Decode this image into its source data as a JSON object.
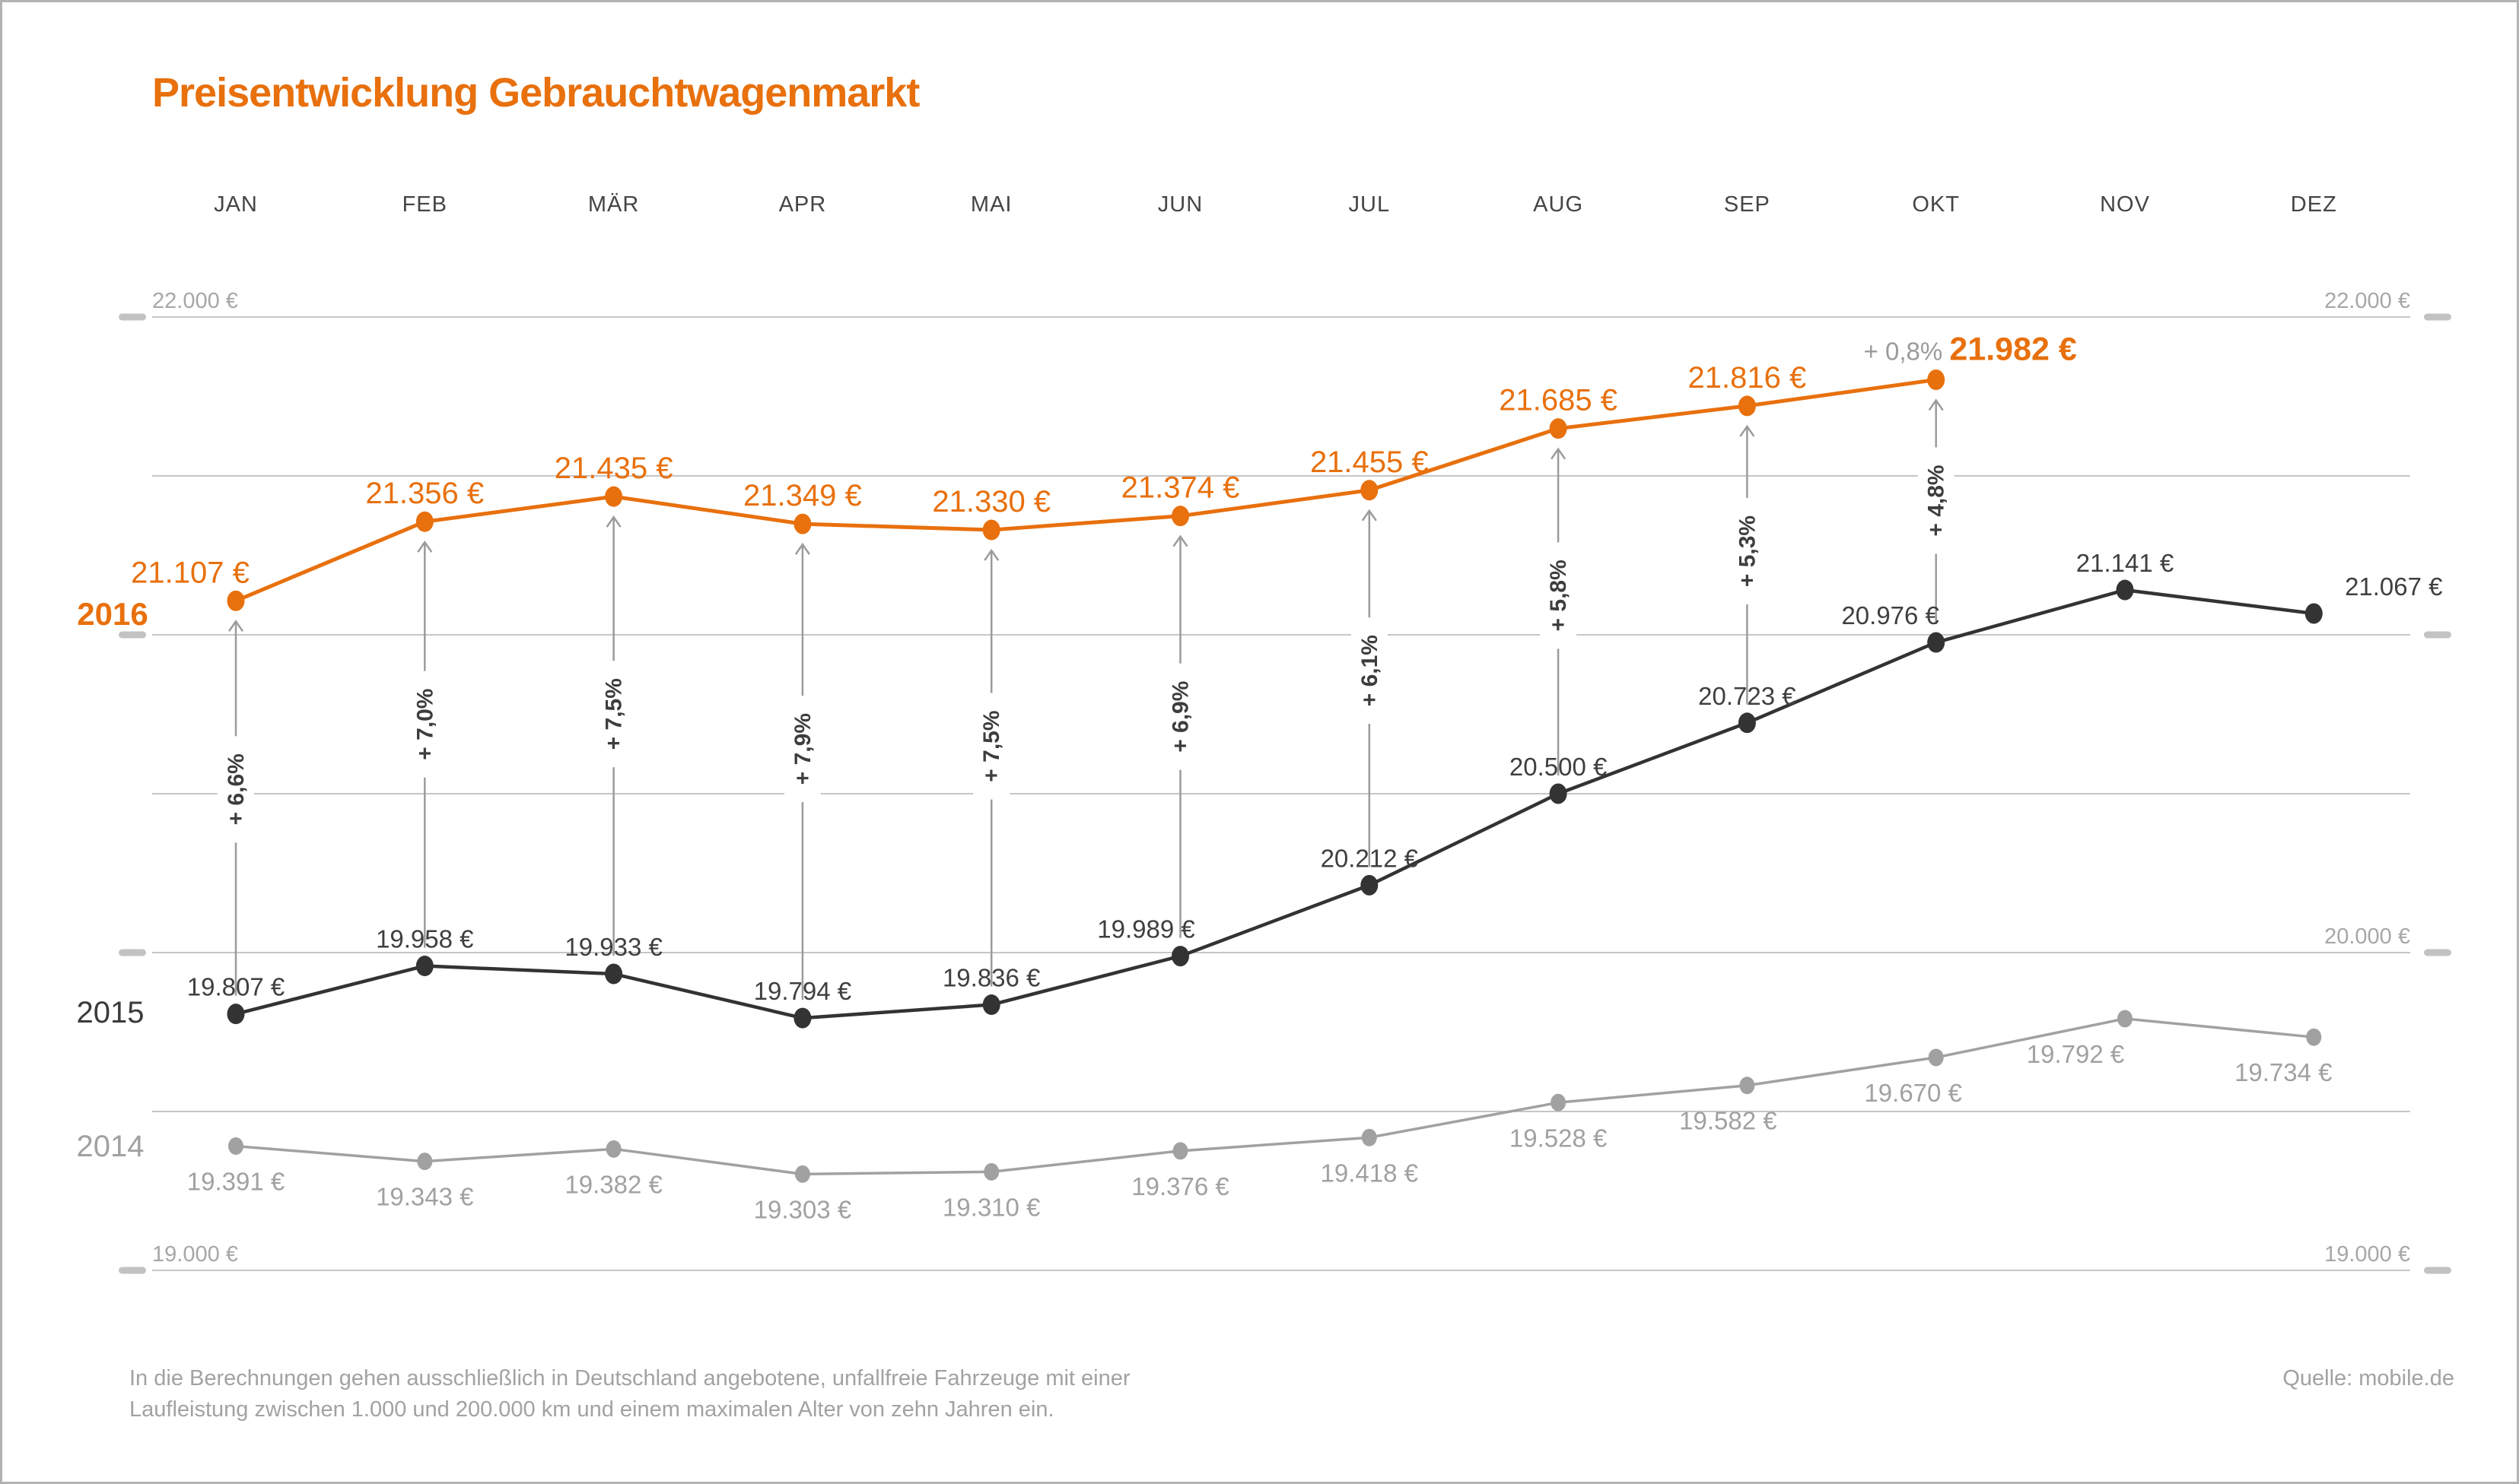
{
  "title": "Preisentwicklung Gebrauchtwagenmarkt",
  "source": "Quelle: mobile.de",
  "footer": {
    "line1": "In die Berechnungen gehen ausschließlich in Deutschland angebotene, unfallfreie Fahrzeuge mit einer",
    "line2": "Laufleistung zwischen 1.000 und 200.000 km und einem maximalen Alter von zehn Jahren ein."
  },
  "colors": {
    "accent": "#e8700d",
    "series_2015": "#333333",
    "series_2014": "#a1a1a1",
    "grid": "#c6c6c6",
    "axis_text": "#a7a7a7",
    "month_text": "#454545",
    "pct_text": "#3d3d3d",
    "arrow": "#9b9b9b"
  },
  "chart_data": {
    "type": "line",
    "title": "Preisentwicklung Gebrauchtwagenmarkt",
    "categories": [
      "JAN",
      "FEB",
      "MÄR",
      "APR",
      "MAI",
      "JUN",
      "JUL",
      "AUG",
      "SEP",
      "OKT",
      "NOV",
      "DEZ"
    ],
    "series": [
      {
        "name": "2016",
        "color": "#e8700d",
        "values": [
          21107,
          21356,
          21435,
          21349,
          21330,
          21374,
          21455,
          21685,
          21816,
          21982,
          null,
          null
        ]
      },
      {
        "name": "2015",
        "color": "#333333",
        "values": [
          19807,
          19958,
          19933,
          19794,
          19836,
          19989,
          20212,
          20500,
          20723,
          20976,
          21141,
          21067
        ]
      },
      {
        "name": "2014",
        "color": "#a1a1a1",
        "values": [
          19391,
          19343,
          19382,
          19303,
          19310,
          19376,
          19418,
          19528,
          19582,
          19670,
          19792,
          19734
        ]
      }
    ],
    "pct_change_2015_to_2016": [
      "+ 6,6%",
      "+ 7,0%",
      "+ 7,5%",
      "+ 7,9%",
      "+ 7,5%",
      "+ 6,9%",
      "+ 6,1%",
      "+ 5,8%",
      "+ 5,3%",
      "+ 4,8%"
    ],
    "okt_month_over_month_change": "+ 0,8%",
    "value_suffix": " €",
    "ylim": [
      19000,
      22000
    ],
    "grid_step": 500,
    "grid_on": true,
    "legend_position": "left-year-labels",
    "axis": {
      "left_labels": [
        {
          "v": 22000,
          "t": "22.000 €"
        },
        {
          "v": 19000,
          "t": "19.000 €"
        }
      ],
      "right_labels": [
        {
          "v": 22000,
          "t": "22.000 €"
        },
        {
          "v": 20000,
          "t": "20.000 €"
        },
        {
          "v": 19000,
          "t": "19.000 €"
        }
      ],
      "tick_dash_values": [
        22000,
        21000,
        20000,
        19000
      ]
    }
  }
}
